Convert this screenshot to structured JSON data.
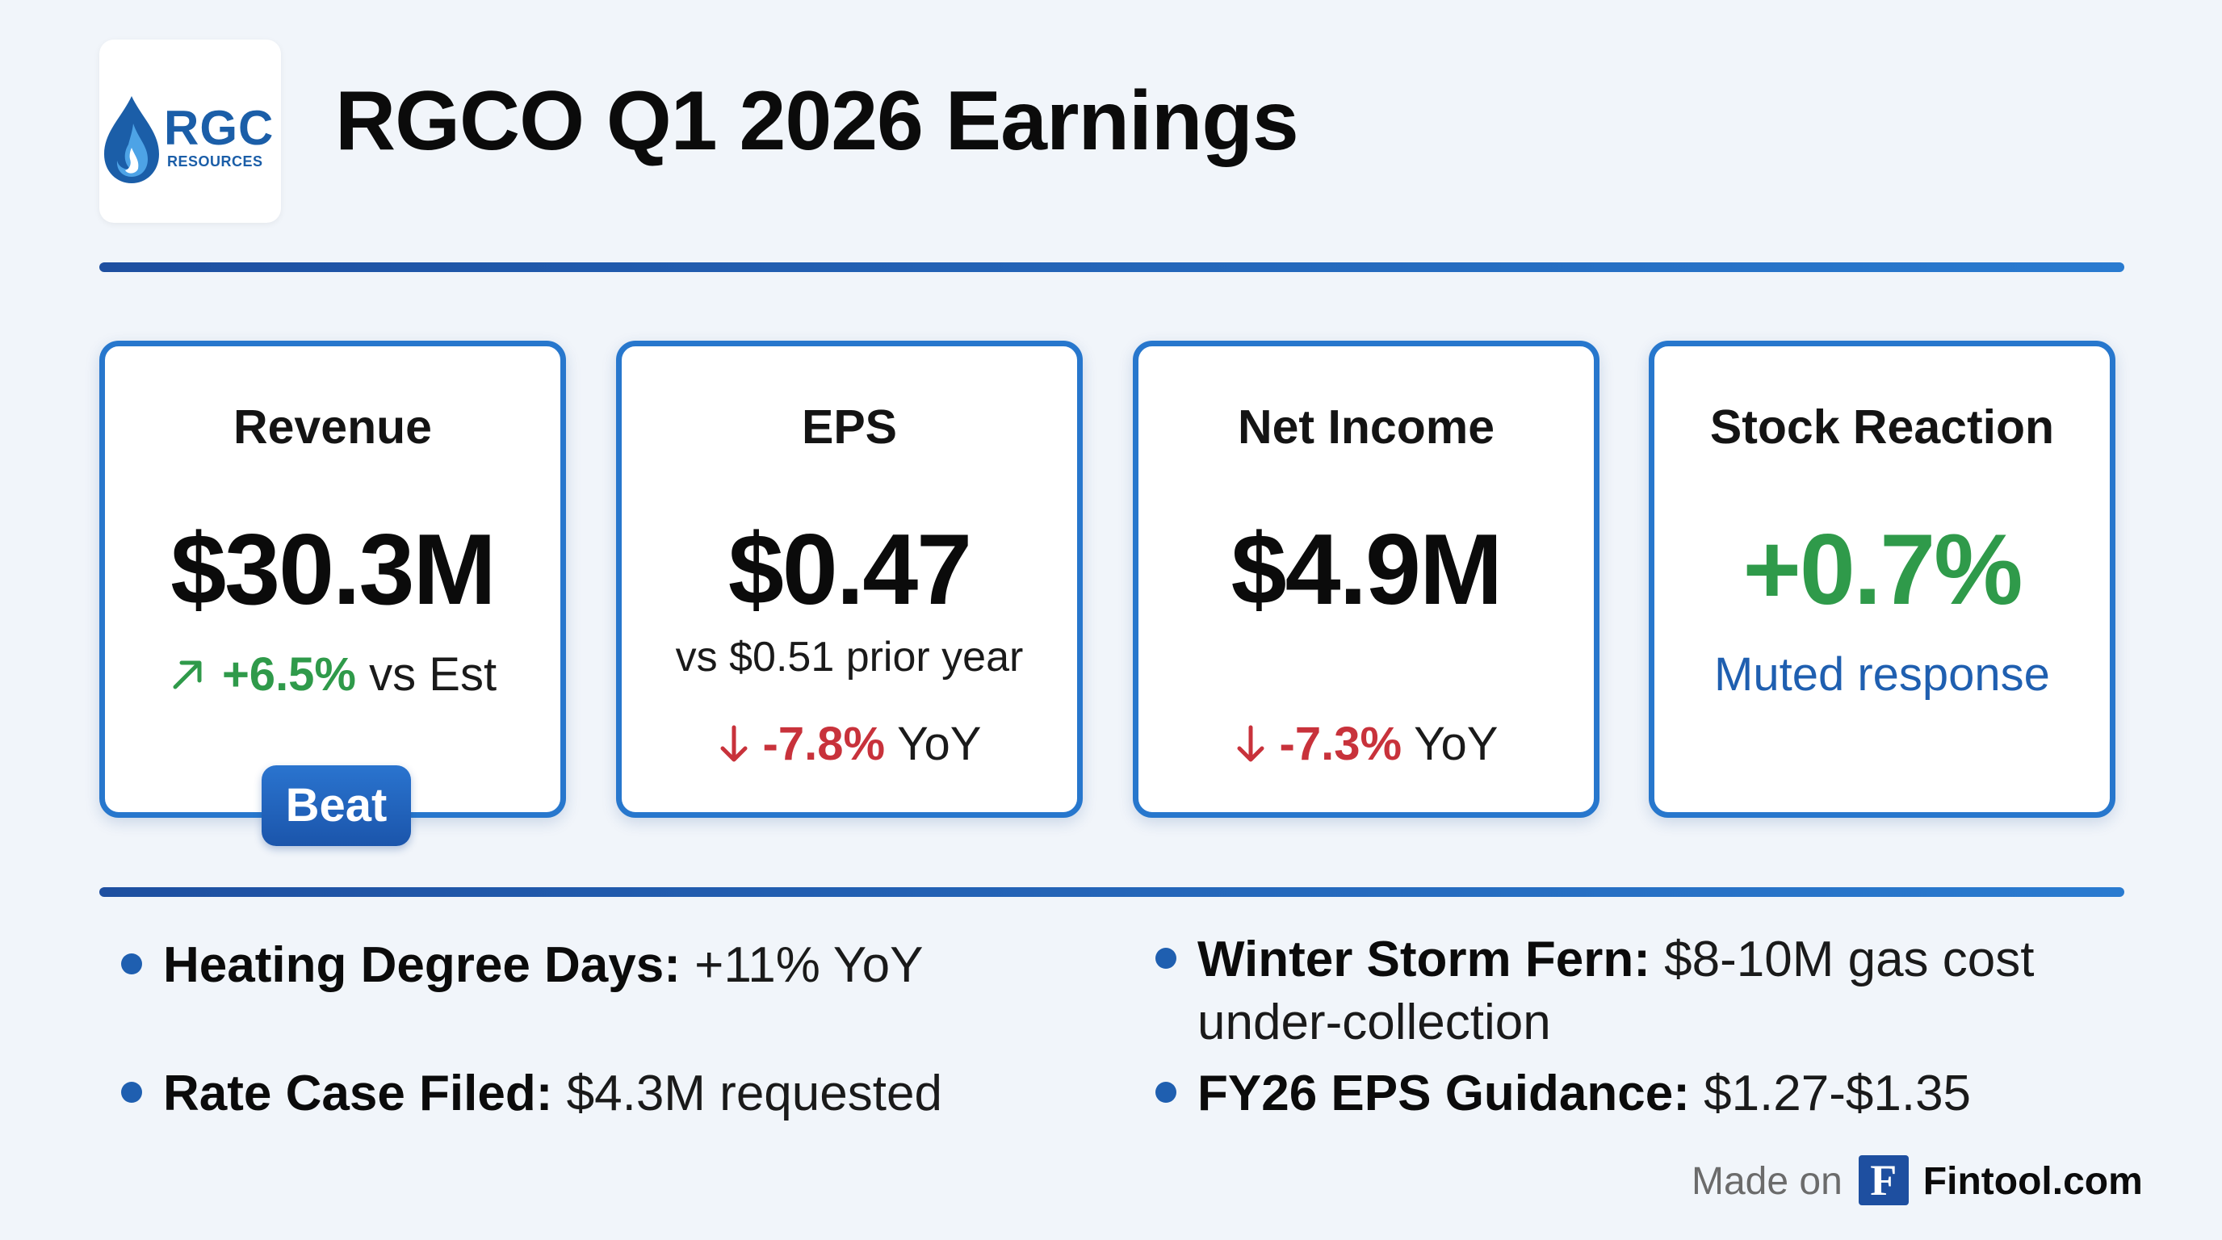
{
  "logo": {
    "main": "RGC",
    "sub": "RESOURCES",
    "brand_color": "#1b5ea8"
  },
  "title": "RGCO Q1 2026 Earnings",
  "cards": [
    {
      "label": "Revenue",
      "value": "$30.3M",
      "change": "+6.5%",
      "change_suffix": "vs Est",
      "direction_icon": "arrow-up-right-icon",
      "badge": "Beat"
    },
    {
      "label": "EPS",
      "value": "$0.47",
      "comparison": "vs $0.51 prior year",
      "change": "-7.8%",
      "change_suffix": "YoY",
      "direction_icon": "arrow-down-icon"
    },
    {
      "label": "Net Income",
      "value": "$4.9M",
      "change": "-7.3%",
      "change_suffix": "YoY",
      "direction_icon": "arrow-down-icon"
    },
    {
      "label": "Stock Reaction",
      "value": "+0.7%",
      "note": "Muted response"
    }
  ],
  "bullets": [
    {
      "label": "Heating Degree Days:",
      "text": "+11% YoY"
    },
    {
      "label": "Winter Storm Fern:",
      "text": "$8-10M gas cost",
      "text2": "under-collection"
    },
    {
      "label": "Rate Case Filed:",
      "text": "$4.3M requested"
    },
    {
      "label": "FY26 EPS Guidance:",
      "text": "$1.27-$1.35"
    }
  ],
  "footer": {
    "made_on": "Made on",
    "icon_letter": "F",
    "brand": "Fintool.com"
  },
  "colors": {
    "accent": "#2777cd",
    "positive": "#2f9a4a",
    "negative": "#c8323b",
    "background": "#f1f5fa"
  }
}
